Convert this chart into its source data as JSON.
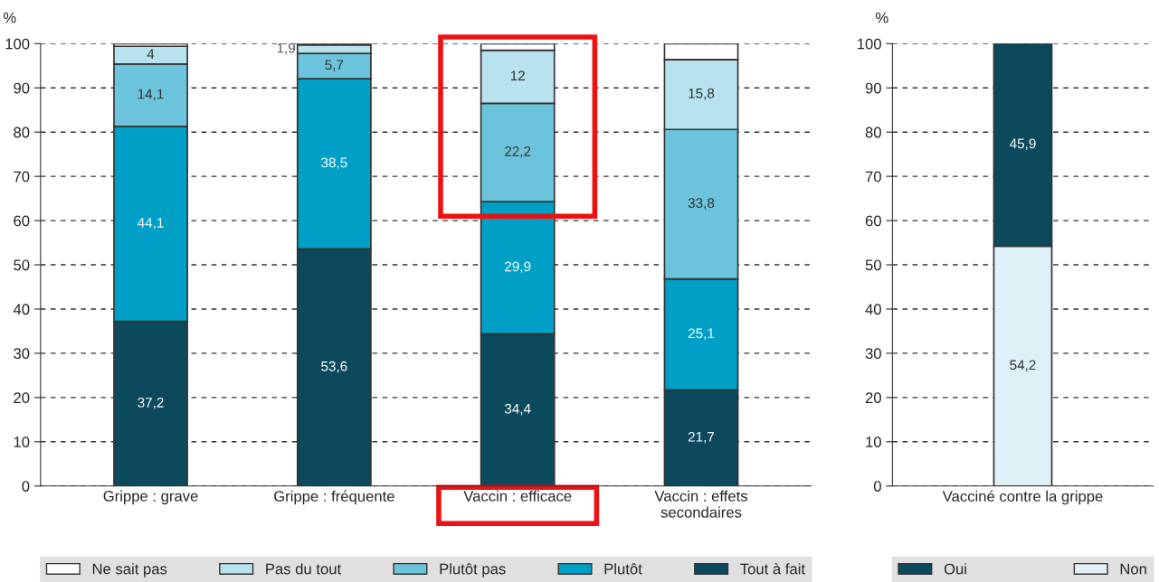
{
  "chart_data": [
    {
      "type": "bar",
      "stacked": true,
      "ylabel": "%",
      "categories": [
        "Grippe : grave",
        "Grippe : fréquente",
        "Vaccin : efficace",
        "Vaccin : effets\nsecondaires"
      ],
      "ylim": [
        0,
        100
      ],
      "yticks": [
        0,
        10,
        20,
        30,
        40,
        50,
        60,
        70,
        80,
        90,
        100
      ],
      "grid": "y",
      "legend": "bottom",
      "series": [
        {
          "name": "Tout à fait",
          "color": "#0b4a5c",
          "values": [
            37.2,
            53.6,
            34.4,
            21.7
          ],
          "value_labels": [
            "37,2",
            "53,6",
            "34,4",
            "21,7"
          ]
        },
        {
          "name": "Plutôt",
          "color": "#00a0c6",
          "values": [
            44.1,
            38.5,
            29.9,
            25.1
          ],
          "value_labels": [
            "44,1",
            "38,5",
            "29,9",
            "25,1"
          ]
        },
        {
          "name": "Plutôt pas",
          "color": "#6cc4dc",
          "values": [
            14.1,
            5.7,
            22.2,
            33.8
          ],
          "value_labels": [
            "14,1",
            "5,7",
            "22,2",
            "33,8"
          ]
        },
        {
          "name": "Pas du tout",
          "color": "#b8e2ee",
          "values": [
            4,
            1.9,
            12,
            15.8
          ],
          "value_labels": [
            "4",
            "1,9",
            "12",
            "15,8"
          ]
        },
        {
          "name": "Ne sait pas",
          "color": "#ffffff",
          "values": [
            0.6,
            0.3,
            1.5,
            3.6
          ],
          "value_labels": [
            null,
            null,
            null,
            null
          ]
        }
      ]
    },
    {
      "type": "bar",
      "stacked": true,
      "ylabel": "%",
      "categories": [
        "Vacciné contre la grippe"
      ],
      "ylim": [
        0,
        100
      ],
      "yticks": [
        0,
        10,
        20,
        30,
        40,
        50,
        60,
        70,
        80,
        90,
        100
      ],
      "grid": "y",
      "legend": "bottom",
      "series": [
        {
          "name": "Non",
          "color": "#dff0f7",
          "values": [
            54.2
          ],
          "value_labels": [
            "54,2"
          ]
        },
        {
          "name": "Oui",
          "color": "#0b4a5c",
          "values": [
            45.9
          ],
          "value_labels": [
            "45,9"
          ]
        }
      ]
    }
  ]
}
